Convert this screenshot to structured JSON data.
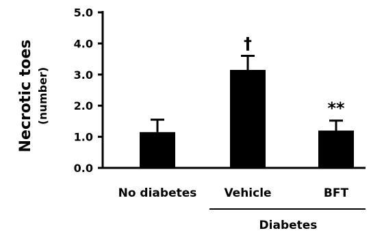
{
  "chart_data": {
    "type": "bar",
    "categories": [
      "No diabetes",
      "Vehicle",
      "BFT"
    ],
    "values": [
      1.15,
      3.15,
      1.2
    ],
    "error": [
      0.4,
      0.45,
      0.32
    ],
    "annotations": [
      "",
      "†",
      "**"
    ],
    "ylabel": "Necrotic toes",
    "ylabel_unit": "(number)",
    "ylim": [
      0,
      5
    ],
    "yticks": [
      "0.0",
      "1.0",
      "2.0",
      "3.0",
      "4.0",
      "5.0"
    ],
    "group_label": "Diabetes",
    "grid": false,
    "bar_color": "#000000"
  }
}
